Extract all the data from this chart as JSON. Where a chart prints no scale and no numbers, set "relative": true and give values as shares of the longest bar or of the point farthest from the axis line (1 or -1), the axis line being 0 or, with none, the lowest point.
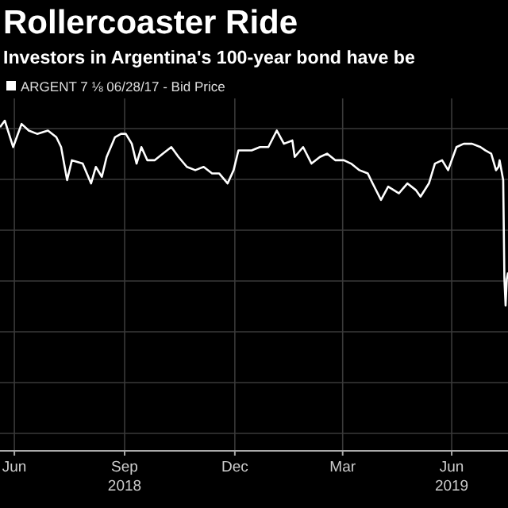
{
  "chart_data": {
    "type": "line",
    "title": "Rollercoaster Ride",
    "subtitle": "Investors in Argentina's 100-year bond have be",
    "relative": true,
    "grid": true,
    "legend": "top left",
    "xlim": [
      "2018-06-18",
      "2019-08-16"
    ],
    "xticks": [
      {
        "value": "2018-06-30",
        "label": "Jun"
      },
      {
        "value": "2018-09-30",
        "label": "Sep\n2018"
      },
      {
        "value": "2018-12-31",
        "label": "Dec"
      },
      {
        "value": "2019-03-31",
        "label": "Mar"
      },
      {
        "value": "2019-06-30",
        "label": "Jun\n2019"
      }
    ],
    "x": [
      "2018-06-18",
      "2018-06-22",
      "2018-06-29",
      "2018-07-06",
      "2018-07-12",
      "2018-07-19",
      "2018-07-28",
      "2018-08-04",
      "2018-08-08",
      "2018-08-13",
      "2018-08-17",
      "2018-08-26",
      "2018-09-02",
      "2018-09-06",
      "2018-09-11",
      "2018-09-15",
      "2018-09-22",
      "2018-09-27",
      "2018-10-01",
      "2018-10-06",
      "2018-10-10",
      "2018-10-14",
      "2018-10-19",
      "2018-10-25",
      "2018-11-01",
      "2018-11-08",
      "2018-11-14",
      "2018-11-21",
      "2018-11-28",
      "2018-12-05",
      "2018-12-12",
      "2018-12-18",
      "2018-12-25",
      "2018-12-30",
      "2019-01-03",
      "2019-01-14",
      "2019-01-21",
      "2019-01-28",
      "2019-02-04",
      "2019-02-10",
      "2019-02-17",
      "2019-02-19",
      "2019-02-26",
      "2019-03-05",
      "2019-03-12",
      "2019-03-18",
      "2019-03-25",
      "2019-04-01",
      "2019-04-07",
      "2019-04-14",
      "2019-04-21",
      "2019-04-25",
      "2019-05-02",
      "2019-05-08",
      "2019-05-17",
      "2019-05-24",
      "2019-05-31",
      "2019-06-04",
      "2019-06-11",
      "2019-06-16",
      "2019-06-22",
      "2019-06-27",
      "2019-07-04",
      "2019-07-10",
      "2019-07-17",
      "2019-07-24",
      "2019-07-28",
      "2019-08-02",
      "2019-08-06",
      "2019-08-08",
      "2019-08-09",
      "2019-08-12",
      "2019-08-13",
      "2019-08-14",
      "2019-08-15",
      "2019-08-16"
    ],
    "series": [
      {
        "name": "ARGENT 7 ⅛ 06/28/17 - Bid Price",
        "color": "#ffffff",
        "values": [
          0.98,
          1,
          0.92,
          0.99,
          0.97,
          0.96,
          0.97,
          0.95,
          0.92,
          0.82,
          0.88,
          0.87,
          0.81,
          0.86,
          0.83,
          0.89,
          0.95,
          0.96,
          0.96,
          0.93,
          0.87,
          0.92,
          0.88,
          0.88,
          0.9,
          0.92,
          0.89,
          0.86,
          0.85,
          0.86,
          0.84,
          0.84,
          0.81,
          0.85,
          0.91,
          0.91,
          0.92,
          0.92,
          0.97,
          0.93,
          0.94,
          0.89,
          0.92,
          0.87,
          0.89,
          0.9,
          0.88,
          0.88,
          0.87,
          0.85,
          0.84,
          0.81,
          0.76,
          0.8,
          0.78,
          0.81,
          0.79,
          0.77,
          0.81,
          0.87,
          0.88,
          0.85,
          0.92,
          0.93,
          0.93,
          0.92,
          0.91,
          0.9,
          0.85,
          0.86,
          0.88,
          0.82,
          0.52,
          0.44,
          0.52,
          0.54
        ]
      }
    ]
  }
}
